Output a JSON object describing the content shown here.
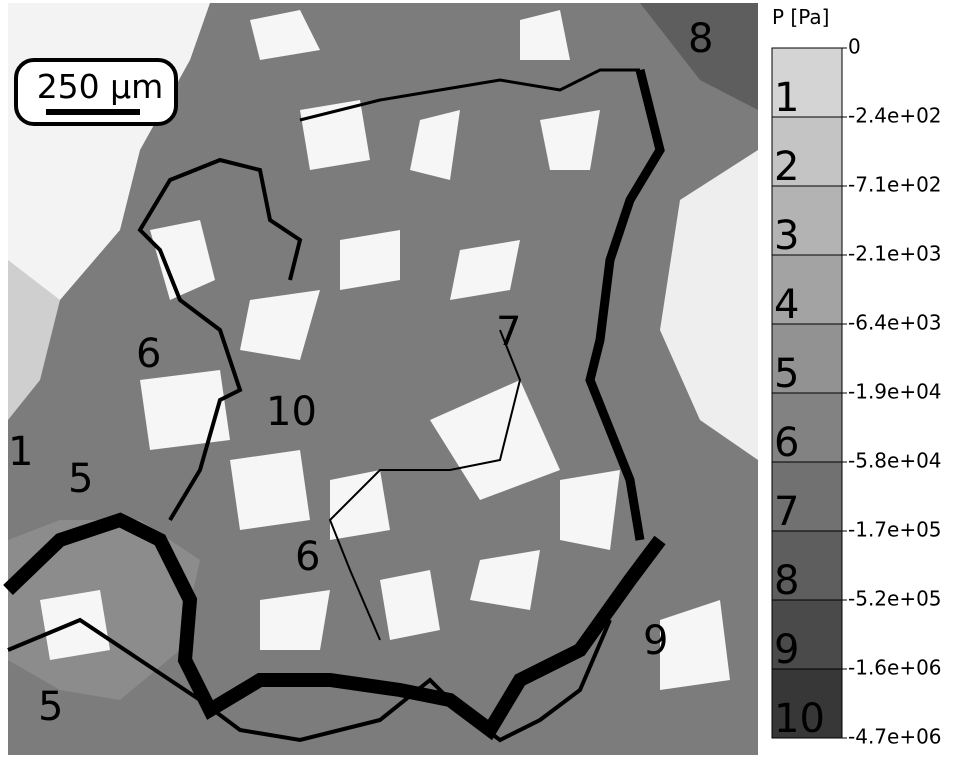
{
  "scale_bar": {
    "label": "250 µm"
  },
  "colorbar": {
    "title": "P [Pa]",
    "levels": [
      {
        "label": "1",
        "color": "#d4d4d4"
      },
      {
        "label": "2",
        "color": "#c4c4c4"
      },
      {
        "label": "3",
        "color": "#b3b3b3"
      },
      {
        "label": "4",
        "color": "#a3a3a3"
      },
      {
        "label": "5",
        "color": "#929292"
      },
      {
        "label": "6",
        "color": "#828282"
      },
      {
        "label": "7",
        "color": "#717171"
      },
      {
        "label": "8",
        "color": "#5e5e5e"
      },
      {
        "label": "9",
        "color": "#4a4a4a"
      },
      {
        "label": "10",
        "color": "#373737"
      }
    ],
    "ticks": [
      "0",
      "-2.4e+02",
      "-7.1e+02",
      "-2.1e+03",
      "-6.4e+03",
      "-1.9e+04",
      "-5.8e+04",
      "-1.7e+05",
      "-5.2e+05",
      "-1.6e+06",
      "-4.7e+06"
    ]
  },
  "region_labels": [
    "8",
    "6",
    "7",
    "10",
    "1",
    "5",
    "6",
    "9",
    "5"
  ]
}
